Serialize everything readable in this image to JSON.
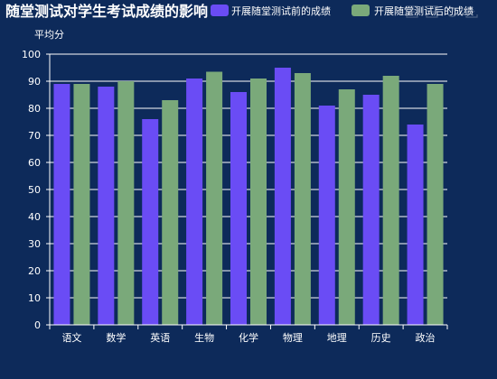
{
  "chart_data": {
    "type": "bar",
    "title": "随堂测试对学生考试成绩的影响",
    "ylabel": "平均分",
    "categories": [
      "语文",
      "数学",
      "英语",
      "生物",
      "化学",
      "物理",
      "地理",
      "历史",
      "政治"
    ],
    "ylim": [
      0,
      100
    ],
    "yticks": [
      0,
      10,
      20,
      30,
      40,
      50,
      60,
      70,
      80,
      90,
      100
    ],
    "grid": true,
    "legend_position": "top-right",
    "series": [
      {
        "name": "开展随堂测试前的成绩",
        "color": "#6a4cf5",
        "values": [
          89,
          88,
          76,
          91,
          86,
          95,
          81,
          85,
          74
        ]
      },
      {
        "name": "开展随堂测试后的成绩",
        "color": "#7aa97a",
        "values": [
          89,
          90,
          83,
          93.5,
          91,
          93,
          87,
          92,
          89
        ]
      }
    ]
  },
  "colors": {
    "background": "#0d2a5a",
    "text": "#ffffff",
    "grid": "#ffffff"
  },
  "toolbox": {
    "icons": [
      "zoom-icon",
      "zoom-reset-icon",
      "restore-icon",
      "save-image-icon"
    ]
  }
}
